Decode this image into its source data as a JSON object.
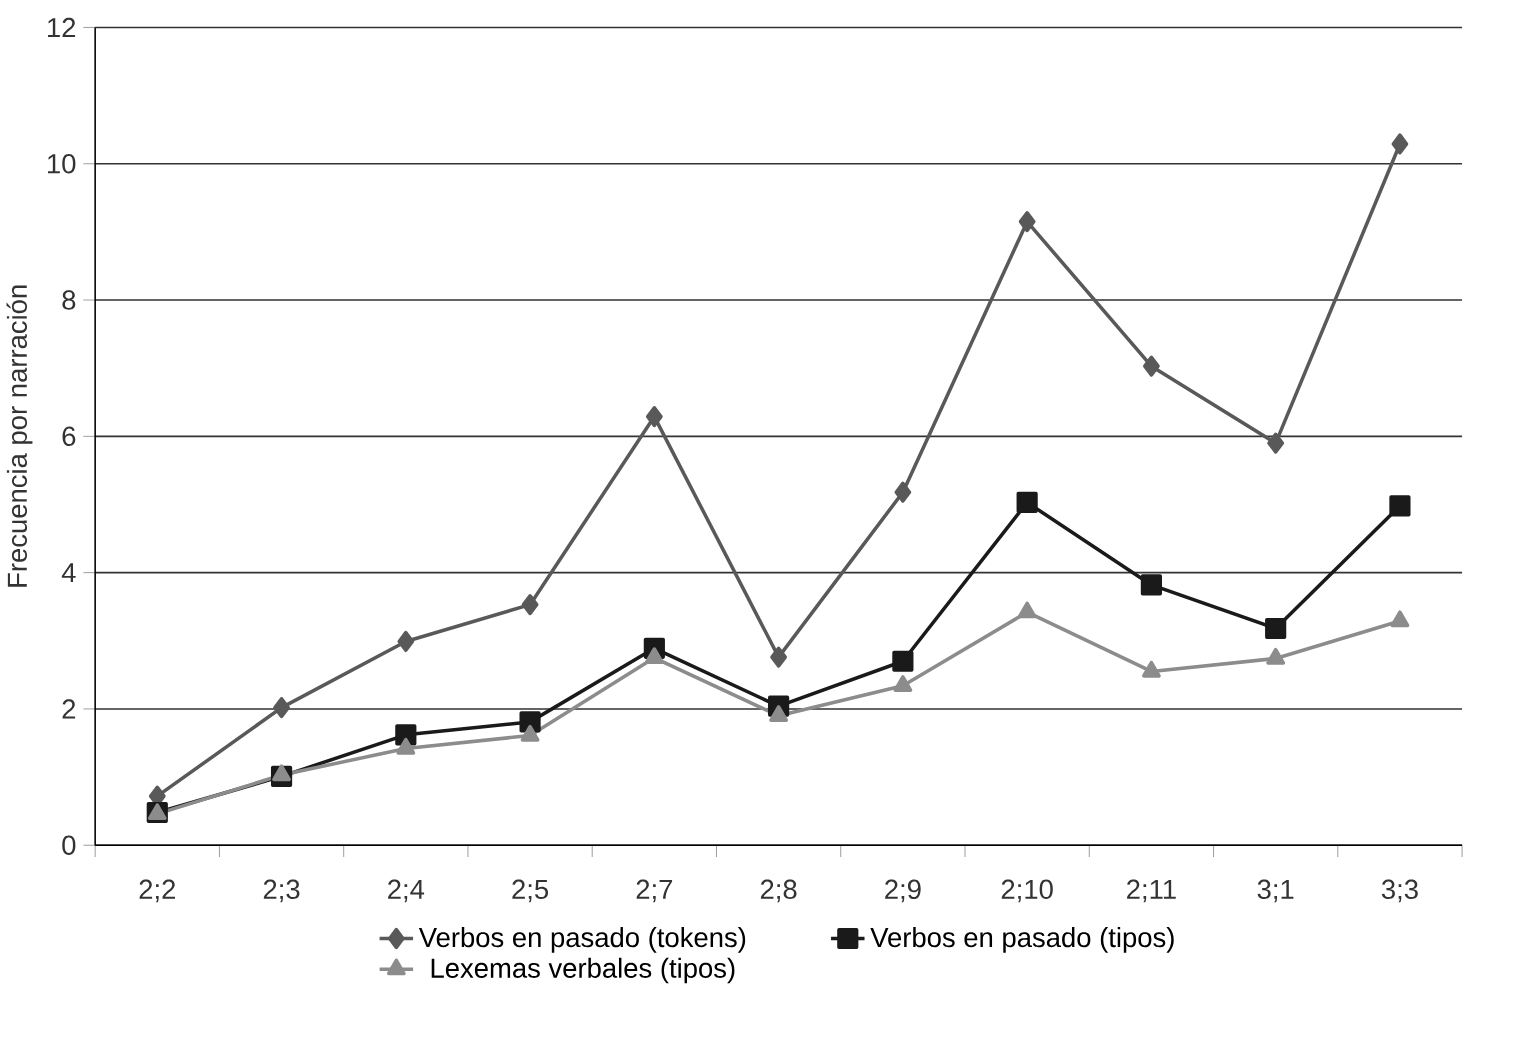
{
  "chart_data": {
    "type": "line",
    "ylabel": "Frecuencia por narración",
    "categories": [
      "2;2",
      "2;3",
      "2;4",
      "2;5",
      "2;7",
      "2;8",
      "2;9",
      "2;10",
      "2;11",
      "3;1",
      "3;3"
    ],
    "series": [
      {
        "name": "Verbos en pasado (tokens)",
        "color": "#595959",
        "marker": "diamond",
        "values": [
          0.72,
          2.02,
          2.99,
          3.53,
          6.29,
          2.76,
          5.18,
          9.15,
          7.03,
          5.9,
          10.29
        ]
      },
      {
        "name": "Verbos en pasado (tipos)",
        "color": "#1a1a1a",
        "marker": "square",
        "values": [
          0.48,
          1.01,
          1.62,
          1.81,
          2.89,
          2.04,
          2.7,
          5.03,
          3.82,
          3.18,
          4.98
        ]
      },
      {
        "name": "Lexemas verbales (tipos)",
        "color": "#8c8c8c",
        "marker": "triangle",
        "values": [
          0.46,
          1.03,
          1.42,
          1.61,
          2.75,
          1.9,
          2.34,
          3.42,
          2.55,
          2.74,
          3.29
        ]
      }
    ],
    "ylim": [
      0,
      12
    ],
    "yticks": [
      0,
      2,
      4,
      6,
      8,
      10,
      12
    ],
    "grid": "y",
    "legend": "bottom",
    "line_style": "solid"
  }
}
